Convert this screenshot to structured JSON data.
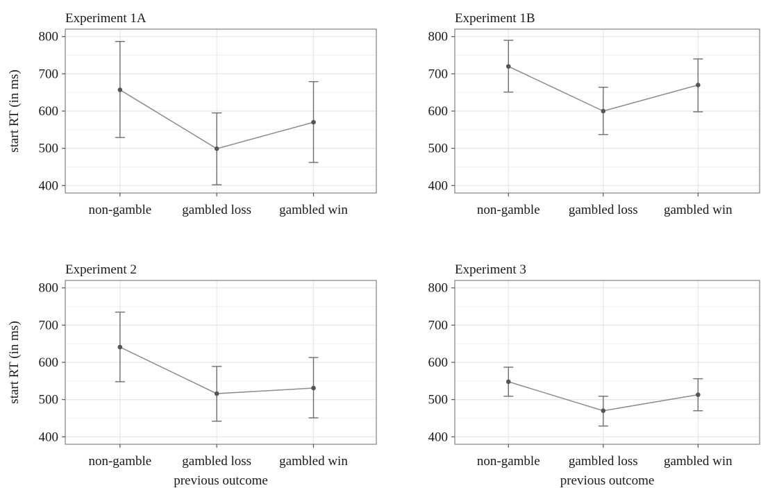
{
  "figure": {
    "y_axis_label": "start RT (in ms)",
    "x_axis_label": "previous outcome"
  },
  "chart_data": [
    {
      "type": "line",
      "title": "Experiment 1A",
      "categories": [
        "non-gamble",
        "gambled loss",
        "gambled win"
      ],
      "values": [
        657,
        499,
        570
      ],
      "error_low": [
        529,
        402,
        462
      ],
      "error_high": [
        787,
        595,
        679
      ],
      "ylabel": "start RT (in ms)",
      "xlabel": "",
      "ylim": [
        380,
        820
      ],
      "yticks": [
        400,
        500,
        600,
        700,
        800
      ],
      "grid": true
    },
    {
      "type": "line",
      "title": "Experiment 1B",
      "categories": [
        "non-gamble",
        "gambled loss",
        "gambled win"
      ],
      "values": [
        720,
        600,
        670
      ],
      "error_low": [
        651,
        537,
        598
      ],
      "error_high": [
        790,
        664,
        740
      ],
      "ylabel": "",
      "xlabel": "",
      "ylim": [
        380,
        820
      ],
      "yticks": [
        400,
        500,
        600,
        700,
        800
      ],
      "grid": true
    },
    {
      "type": "line",
      "title": "Experiment 2",
      "categories": [
        "non-gamble",
        "gambled loss",
        "gambled win"
      ],
      "values": [
        641,
        516,
        531
      ],
      "error_low": [
        548,
        442,
        451
      ],
      "error_high": [
        735,
        589,
        613
      ],
      "ylabel": "start RT (in ms)",
      "xlabel": "previous outcome",
      "ylim": [
        380,
        820
      ],
      "yticks": [
        400,
        500,
        600,
        700,
        800
      ],
      "grid": true
    },
    {
      "type": "line",
      "title": "Experiment 3",
      "categories": [
        "non-gamble",
        "gambled loss",
        "gambled win"
      ],
      "values": [
        548,
        470,
        513
      ],
      "error_low": [
        509,
        429,
        470
      ],
      "error_high": [
        587,
        509,
        556
      ],
      "ylabel": "",
      "xlabel": "previous outcome",
      "ylim": [
        380,
        820
      ],
      "yticks": [
        400,
        500,
        600,
        700,
        800
      ],
      "grid": true
    }
  ]
}
